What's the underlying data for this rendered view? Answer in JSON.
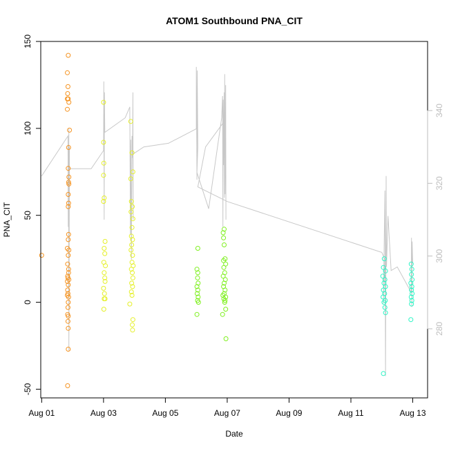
{
  "chart_data": {
    "type": "scatter",
    "title": "ATOM1 Southbound PNA_CIT",
    "xlabel": "Date",
    "ylabel": "PNA_CIT",
    "x_ticks": [
      "Aug 01",
      "Aug 03",
      "Aug 05",
      "Aug 07",
      "Aug 09",
      "Aug 11",
      "Aug 13"
    ],
    "x_tick_days": [
      1,
      3,
      5,
      7,
      9,
      11,
      13
    ],
    "xlim": [
      0.97,
      13.48
    ],
    "ylim": [
      -55,
      150
    ],
    "y_ticks": [
      -50,
      0,
      50,
      100,
      150
    ],
    "y2lim": [
      261,
      359
    ],
    "y2_ticks": [
      280,
      300,
      320,
      340
    ],
    "colors": {
      "scatter_series": [
        "#f59320",
        "#e5f028",
        "#7ef01e",
        "#2af5c5"
      ],
      "line": "#c8c8c8",
      "right_axis_text": "#bdbdbd"
    },
    "series": [
      {
        "color": "#f59320",
        "points": [
          [
            1.0,
            27
          ],
          [
            1.86,
            142
          ],
          [
            1.83,
            132
          ],
          [
            1.85,
            124
          ],
          [
            1.84,
            120
          ],
          [
            1.83,
            117
          ],
          [
            1.86,
            117
          ],
          [
            1.88,
            115
          ],
          [
            1.83,
            111
          ],
          [
            1.9,
            99
          ],
          [
            1.87,
            89
          ],
          [
            1.86,
            77
          ],
          [
            1.88,
            72
          ],
          [
            1.87,
            69
          ],
          [
            1.88,
            68
          ],
          [
            1.86,
            62
          ],
          [
            1.87,
            57
          ],
          [
            1.86,
            55
          ],
          [
            1.87,
            39
          ],
          [
            1.86,
            36
          ],
          [
            1.83,
            31
          ],
          [
            1.88,
            30
          ],
          [
            1.86,
            27
          ],
          [
            1.84,
            22
          ],
          [
            1.87,
            19
          ],
          [
            1.87,
            17
          ],
          [
            1.84,
            15
          ],
          [
            1.85,
            14
          ],
          [
            1.88,
            13
          ],
          [
            1.83,
            12
          ],
          [
            1.86,
            10
          ],
          [
            1.84,
            7
          ],
          [
            1.85,
            5
          ],
          [
            1.83,
            4
          ],
          [
            1.87,
            3
          ],
          [
            1.86,
            0
          ],
          [
            1.85,
            -3
          ],
          [
            1.84,
            -7
          ],
          [
            1.86,
            -8
          ],
          [
            1.85,
            -11
          ],
          [
            1.86,
            -15
          ],
          [
            1.86,
            -27
          ],
          [
            1.84,
            -48
          ]
        ]
      },
      {
        "color": "#e5f028",
        "points": [
          [
            3.0,
            115
          ],
          [
            3.0,
            92
          ],
          [
            3.01,
            80
          ],
          [
            3.0,
            73
          ],
          [
            3.02,
            60
          ],
          [
            3.0,
            58
          ],
          [
            3.05,
            35
          ],
          [
            3.02,
            31
          ],
          [
            3.04,
            28
          ],
          [
            3.01,
            23
          ],
          [
            3.06,
            21
          ],
          [
            3.02,
            17
          ],
          [
            3.04,
            14
          ],
          [
            3.05,
            12
          ],
          [
            3.0,
            8
          ],
          [
            3.03,
            5
          ],
          [
            3.02,
            2
          ],
          [
            3.05,
            2
          ],
          [
            3.01,
            -4
          ],
          [
            3.88,
            104
          ],
          [
            3.92,
            86
          ],
          [
            3.95,
            75
          ],
          [
            3.88,
            71
          ],
          [
            3.9,
            58
          ],
          [
            3.93,
            55
          ],
          [
            3.89,
            52
          ],
          [
            3.95,
            48
          ],
          [
            3.92,
            43
          ],
          [
            3.9,
            38
          ],
          [
            3.94,
            36
          ],
          [
            3.91,
            33
          ],
          [
            3.89,
            30
          ],
          [
            3.94,
            27
          ],
          [
            3.92,
            23
          ],
          [
            3.96,
            21
          ],
          [
            3.9,
            19
          ],
          [
            3.93,
            17
          ],
          [
            3.95,
            14
          ],
          [
            3.91,
            11
          ],
          [
            3.94,
            9
          ],
          [
            3.9,
            6
          ],
          [
            3.92,
            4
          ],
          [
            3.85,
            -1
          ],
          [
            3.95,
            -10
          ],
          [
            3.93,
            -13
          ],
          [
            3.94,
            -16
          ]
        ]
      },
      {
        "color": "#7ef01e",
        "points": [
          [
            6.05,
            31
          ],
          [
            6.02,
            19
          ],
          [
            6.05,
            17
          ],
          [
            6.04,
            14
          ],
          [
            6.06,
            11
          ],
          [
            6.02,
            9
          ],
          [
            6.05,
            7
          ],
          [
            6.03,
            5
          ],
          [
            6.06,
            3
          ],
          [
            6.04,
            1
          ],
          [
            6.07,
            0
          ],
          [
            6.02,
            -7
          ],
          [
            6.9,
            42
          ],
          [
            6.87,
            40
          ],
          [
            6.88,
            37
          ],
          [
            6.9,
            33
          ],
          [
            6.93,
            25
          ],
          [
            6.88,
            24
          ],
          [
            6.95,
            22
          ],
          [
            6.89,
            20
          ],
          [
            6.92,
            17
          ],
          [
            6.87,
            15
          ],
          [
            6.94,
            13
          ],
          [
            6.9,
            11
          ],
          [
            6.88,
            9
          ],
          [
            6.93,
            7
          ],
          [
            6.9,
            5
          ],
          [
            6.86,
            4
          ],
          [
            6.95,
            3
          ],
          [
            6.89,
            2
          ],
          [
            6.93,
            1
          ],
          [
            6.92,
            0
          ],
          [
            6.95,
            -4
          ],
          [
            6.85,
            -7
          ],
          [
            6.96,
            -21
          ]
        ]
      },
      {
        "color": "#2af5c5",
        "points": [
          [
            12.08,
            25
          ],
          [
            12.05,
            20
          ],
          [
            12.12,
            18
          ],
          [
            12.03,
            15
          ],
          [
            12.1,
            13
          ],
          [
            12.07,
            11
          ],
          [
            12.12,
            9
          ],
          [
            12.05,
            7
          ],
          [
            12.09,
            5
          ],
          [
            12.04,
            3
          ],
          [
            12.11,
            1
          ],
          [
            12.07,
            0
          ],
          [
            12.1,
            -3
          ],
          [
            12.12,
            -6
          ],
          [
            12.05,
            -41
          ],
          [
            12.95,
            22
          ],
          [
            12.97,
            19
          ],
          [
            12.96,
            16
          ],
          [
            12.98,
            13
          ],
          [
            12.94,
            11
          ],
          [
            12.97,
            9
          ],
          [
            12.96,
            7
          ],
          [
            12.98,
            5
          ],
          [
            12.95,
            3
          ],
          [
            12.97,
            1
          ],
          [
            12.96,
            -1
          ],
          [
            12.94,
            -10
          ]
        ]
      }
    ],
    "line_series": {
      "color": "#c8c8c8",
      "axis": "right",
      "points": [
        [
          1.0,
          322
        ],
        [
          1.85,
          333
        ],
        [
          1.86,
          308
        ],
        [
          1.88,
          335
        ],
        [
          1.87,
          290
        ],
        [
          1.9,
          330
        ],
        [
          1.88,
          274
        ],
        [
          1.87,
          328
        ],
        [
          1.9,
          324
        ],
        [
          2.6,
          324
        ],
        [
          3.0,
          329
        ],
        [
          3.01,
          348
        ],
        [
          3.02,
          310
        ],
        [
          3.03,
          345
        ],
        [
          3.04,
          334
        ],
        [
          3.7,
          338
        ],
        [
          3.85,
          341
        ],
        [
          3.87,
          306
        ],
        [
          3.88,
          332
        ],
        [
          3.9,
          299
        ],
        [
          3.92,
          333
        ],
        [
          3.94,
          327
        ],
        [
          3.95,
          345
        ],
        [
          3.96,
          310
        ],
        [
          3.95,
          328
        ],
        [
          4.3,
          330
        ],
        [
          5.1,
          331
        ],
        [
          6.0,
          335
        ],
        [
          6.0,
          352
        ],
        [
          6.02,
          321
        ],
        [
          6.03,
          351
        ],
        [
          6.05,
          330
        ],
        [
          6.02,
          323
        ],
        [
          6.4,
          313
        ],
        [
          6.82,
          338
        ],
        [
          6.85,
          344
        ],
        [
          6.86,
          308
        ],
        [
          6.87,
          343
        ],
        [
          6.88,
          325
        ],
        [
          6.9,
          345
        ],
        [
          6.91,
          316
        ],
        [
          6.92,
          350
        ],
        [
          6.93,
          317
        ],
        [
          6.95,
          347
        ],
        [
          6.96,
          310
        ],
        [
          6.95,
          340
        ],
        [
          6.9,
          337
        ],
        [
          6.3,
          330
        ],
        [
          6.05,
          319
        ],
        [
          7.0,
          315
        ],
        [
          12.0,
          301
        ],
        [
          12.1,
          299
        ],
        [
          12.05,
          287
        ],
        [
          12.1,
          318
        ],
        [
          12.12,
          267
        ],
        [
          12.14,
          322
        ],
        [
          12.15,
          297
        ],
        [
          12.2,
          311
        ],
        [
          12.3,
          296
        ],
        [
          12.5,
          297
        ],
        [
          12.95,
          290
        ],
        [
          12.96,
          305
        ],
        [
          12.97,
          286
        ],
        [
          12.98,
          304
        ],
        [
          13.0,
          298
        ]
      ]
    }
  }
}
